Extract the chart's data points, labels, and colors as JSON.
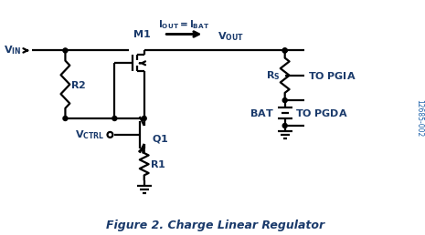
{
  "title": "Figure 2. Charge Linear Regulator",
  "fig_width": 4.65,
  "fig_height": 2.58,
  "dpi": 100,
  "bg_color": "#ffffff",
  "line_color": "#000000",
  "text_color": "#1a3a6b",
  "annotation_id": "12685-002",
  "annotation_color": "#1a5fa8"
}
